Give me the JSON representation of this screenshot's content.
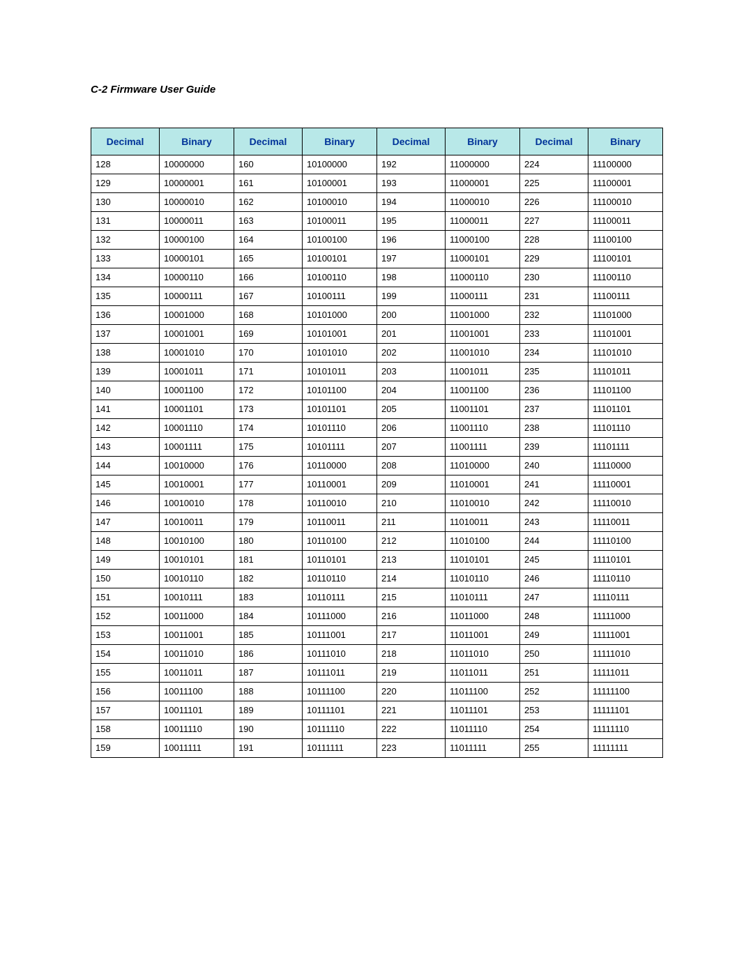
{
  "page_title": "C-2  Firmware User Guide",
  "headers": [
    "Decimal",
    "Binary",
    "Decimal",
    "Binary",
    "Decimal",
    "Binary",
    "Decimal",
    "Binary"
  ],
  "header_bg": "#b8e8e8",
  "header_color": "#003399",
  "start": 128,
  "end": 255,
  "rows_per_column_group": 32
}
